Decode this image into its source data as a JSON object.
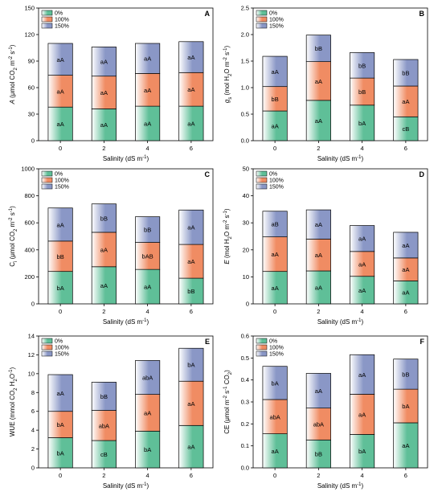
{
  "legend_labels": [
    "0%",
    "100%",
    "150%"
  ],
  "colors": {
    "s0": "#5fbf98",
    "s100": "#f08c63",
    "s150": "#8a97c6"
  },
  "chart_data": [
    {
      "panel": "A",
      "type": "bar",
      "stacked": true,
      "categories": [
        "0",
        "2",
        "4",
        "6"
      ],
      "ylim": [
        0,
        150
      ],
      "yticks": [
        0,
        30,
        60,
        90,
        120,
        150
      ],
      "ylabel_parts": [
        [
          "A",
          "i"
        ],
        [
          " (μmol CO",
          ""
        ],
        [
          "2",
          "sub"
        ],
        [
          " m",
          ""
        ],
        [
          "-2",
          "sup"
        ],
        [
          " s",
          ""
        ],
        [
          "-1",
          "sup"
        ],
        [
          ")",
          ""
        ]
      ],
      "xlabel_parts": [
        [
          "Salinity (dS m",
          ""
        ],
        [
          "-1",
          "sup"
        ],
        [
          ")",
          ""
        ]
      ],
      "series": [
        {
          "name": "0%",
          "values": [
            38,
            36,
            39,
            39
          ],
          "labels": [
            "aA",
            "aA",
            "aA",
            "aA"
          ]
        },
        {
          "name": "100%",
          "values": [
            36,
            37,
            37,
            38
          ],
          "labels": [
            "aA",
            "aA",
            "aA",
            "aA"
          ]
        },
        {
          "name": "150%",
          "values": [
            36,
            33,
            34,
            35
          ],
          "labels": [
            "aA",
            "aA",
            "aA",
            "aA"
          ]
        }
      ]
    },
    {
      "panel": "B",
      "type": "bar",
      "stacked": true,
      "categories": [
        "0",
        "2",
        "4",
        "6"
      ],
      "ylim": [
        0,
        2.5
      ],
      "yticks": [
        0.0,
        0.5,
        1.0,
        1.5,
        2.0,
        2.5
      ],
      "ydec": 1,
      "ylabel_parts": [
        [
          "g",
          "i"
        ],
        [
          "s",
          "sub"
        ],
        [
          " (mol H",
          ""
        ],
        [
          "2",
          "sub"
        ],
        [
          "O m",
          ""
        ],
        [
          "-2",
          "sup"
        ],
        [
          " s",
          ""
        ],
        [
          "-1",
          "sup"
        ],
        [
          ")",
          ""
        ]
      ],
      "xlabel_parts": [
        [
          "Salinity (dS m",
          ""
        ],
        [
          "-1",
          "sup"
        ],
        [
          ")",
          ""
        ]
      ],
      "series": [
        {
          "name": "0%",
          "values": [
            0.56,
            0.76,
            0.67,
            0.45
          ],
          "labels": [
            "aA",
            "aA",
            "bA",
            "cB"
          ]
        },
        {
          "name": "100%",
          "values": [
            0.46,
            0.73,
            0.51,
            0.58
          ],
          "labels": [
            "bB",
            "aA",
            "bB",
            "aA"
          ]
        },
        {
          "name": "150%",
          "values": [
            0.57,
            0.5,
            0.48,
            0.5
          ],
          "labels": [
            "aA",
            "bB",
            "bB",
            "bB"
          ]
        }
      ]
    },
    {
      "panel": "C",
      "type": "bar",
      "stacked": true,
      "categories": [
        "0",
        "2",
        "4",
        "6"
      ],
      "ylim": [
        0,
        1000
      ],
      "yticks": [
        0,
        200,
        400,
        600,
        800,
        1000
      ],
      "ylabel_parts": [
        [
          "C",
          ""
        ],
        [
          "i",
          "sub"
        ],
        [
          " (μmol CO",
          ""
        ],
        [
          "2",
          "sub"
        ],
        [
          " m",
          ""
        ],
        [
          "-2",
          "sup"
        ],
        [
          " s",
          ""
        ],
        [
          "-1",
          "sup"
        ],
        [
          ")",
          ""
        ]
      ],
      "xlabel_parts": [
        [
          "Salinity (dS m",
          ""
        ],
        [
          "-1",
          "sup"
        ],
        [
          ")",
          ""
        ]
      ],
      "series": [
        {
          "name": "0%",
          "values": [
            240,
            275,
            255,
            190
          ],
          "labels": [
            "bA",
            "aA",
            "aA",
            "bB"
          ]
        },
        {
          "name": "100%",
          "values": [
            225,
            255,
            200,
            250
          ],
          "labels": [
            "bB",
            "aA",
            "bAB",
            "aA"
          ]
        },
        {
          "name": "150%",
          "values": [
            245,
            210,
            190,
            255
          ],
          "labels": [
            "aA",
            "bB",
            "bB",
            "aA"
          ]
        }
      ]
    },
    {
      "panel": "D",
      "type": "bar",
      "stacked": true,
      "categories": [
        "0",
        "2",
        "4",
        "6"
      ],
      "ylim": [
        0,
        50
      ],
      "yticks": [
        0,
        10,
        20,
        30,
        40,
        50
      ],
      "ylabel_parts": [
        [
          "E",
          "i"
        ],
        [
          " (mol H",
          ""
        ],
        [
          "2",
          "sub"
        ],
        [
          "O m",
          ""
        ],
        [
          "-2",
          "sup"
        ],
        [
          " s",
          ""
        ],
        [
          "-1",
          "sup"
        ],
        [
          ")",
          ""
        ]
      ],
      "xlabel_parts": [
        [
          "Salinity (dS m",
          ""
        ],
        [
          "-1",
          "sup"
        ],
        [
          ")",
          ""
        ]
      ],
      "series": [
        {
          "name": "0%",
          "values": [
            12,
            12.2,
            10.2,
            8.5
          ],
          "labels": [
            "aA",
            "aA",
            "aA",
            "aA"
          ]
        },
        {
          "name": "100%",
          "values": [
            12.8,
            11.8,
            9.2,
            8.5
          ],
          "labels": [
            "aA",
            "aA",
            "aA",
            "aA"
          ]
        },
        {
          "name": "150%",
          "values": [
            9.5,
            10.8,
            9.6,
            9.5
          ],
          "labels": [
            "aB",
            "aA",
            "aA",
            "aA"
          ]
        }
      ]
    },
    {
      "panel": "E",
      "type": "bar",
      "stacked": true,
      "categories": [
        "0",
        "2",
        "4",
        "6"
      ],
      "ylim": [
        0,
        14
      ],
      "yticks": [
        0,
        2,
        4,
        6,
        8,
        10,
        12,
        14
      ],
      "ylabel_parts": [
        [
          "WUE (mmol CO",
          ""
        ],
        [
          "2",
          "sub"
        ],
        [
          " H",
          ""
        ],
        [
          "2",
          "sub"
        ],
        [
          "O",
          ""
        ],
        [
          "-1",
          "sup"
        ],
        [
          ")",
          ""
        ]
      ],
      "xlabel_parts": [
        [
          "Salinity (dS m",
          ""
        ],
        [
          "-1",
          "sup"
        ],
        [
          ")",
          ""
        ]
      ],
      "series": [
        {
          "name": "0%",
          "values": [
            3.2,
            2.9,
            3.9,
            4.5
          ],
          "labels": [
            "bA",
            "cB",
            "bA",
            "aA"
          ]
        },
        {
          "name": "100%",
          "values": [
            2.8,
            3.2,
            3.9,
            4.7
          ],
          "labels": [
            "bA",
            "abA",
            "aA",
            "aA"
          ]
        },
        {
          "name": "150%",
          "values": [
            3.9,
            3.0,
            3.6,
            3.5
          ],
          "labels": [
            "aA",
            "bB",
            "abA",
            "bA"
          ]
        }
      ]
    },
    {
      "panel": "F",
      "type": "bar",
      "stacked": true,
      "categories": [
        "0",
        "2",
        "4",
        "6"
      ],
      "ylim": [
        0,
        0.6
      ],
      "yticks": [
        0.0,
        0.1,
        0.2,
        0.3,
        0.4,
        0.5,
        0.6
      ],
      "ydec": 1,
      "ylabel_parts": [
        [
          "CE (μmol m",
          ""
        ],
        [
          "-2",
          "sup"
        ],
        [
          " s",
          ""
        ],
        [
          "-1",
          "sup"
        ],
        [
          " CO",
          ""
        ],
        [
          "2",
          "sub"
        ],
        [
          ")",
          ""
        ]
      ],
      "xlabel_parts": [
        [
          "Salinity (dS m",
          ""
        ],
        [
          "-1",
          "sup"
        ],
        [
          ")",
          ""
        ]
      ],
      "series": [
        {
          "name": "0%",
          "values": [
            0.155,
            0.127,
            0.152,
            0.205
          ],
          "labels": [
            "aA",
            "bB",
            "bA",
            "aA"
          ]
        },
        {
          "name": "100%",
          "values": [
            0.156,
            0.145,
            0.183,
            0.153
          ],
          "labels": [
            "abA",
            "abA",
            "aA",
            "bA"
          ]
        },
        {
          "name": "150%",
          "values": [
            0.151,
            0.158,
            0.18,
            0.137
          ],
          "labels": [
            "bA",
            "aA",
            "aA",
            "bB"
          ]
        }
      ]
    }
  ]
}
